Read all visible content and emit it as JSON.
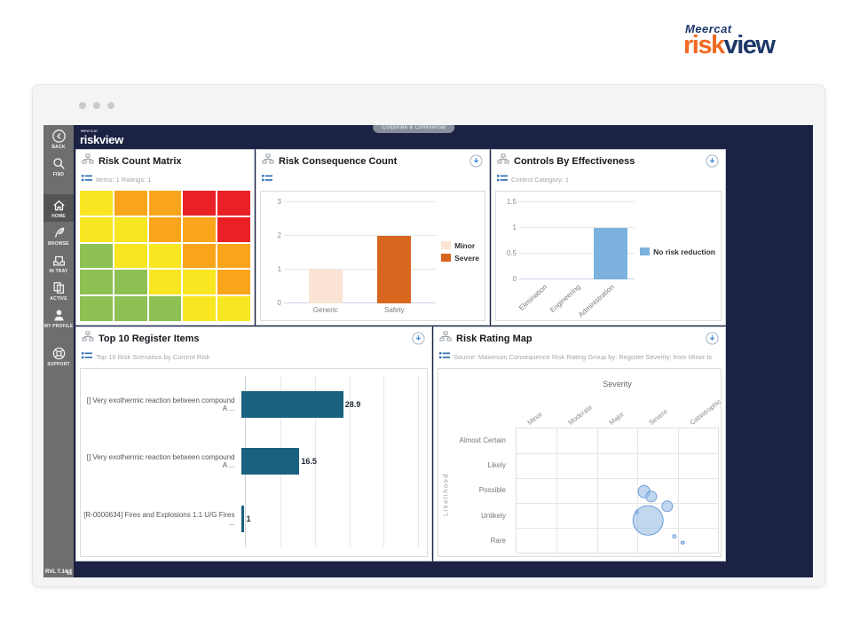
{
  "brand": {
    "company": "Meercat",
    "product_risk": "risk",
    "product_view": "view",
    "navy": "#1d3869",
    "orange": "#f26a21"
  },
  "window": {
    "org_badge": "Corporate & Commercial"
  },
  "app_logo": {
    "small": "Meercat",
    "main": "riskview"
  },
  "sidebar": {
    "items": [
      {
        "id": "back",
        "label": "BACK"
      },
      {
        "id": "find",
        "label": "FIND"
      },
      {
        "id": "home",
        "label": "HOME",
        "active": true
      },
      {
        "id": "browse",
        "label": "BROWSE"
      },
      {
        "id": "in-tray",
        "label": "IN TRAY"
      },
      {
        "id": "active",
        "label": "ACTIVE"
      },
      {
        "id": "my-profile",
        "label": "MY PROFILE"
      },
      {
        "id": "support",
        "label": "SUPPORT"
      }
    ],
    "version": "RVL 7.14.2"
  },
  "chart_data": [
    {
      "type": "heatmap",
      "title": "Risk Count Matrix",
      "subtitle": "Items: 1    Ratings: 1",
      "palette": {
        "G": "#8ec054",
        "Y": "#f7e621",
        "O": "#f9a51b",
        "R": "#e92025"
      },
      "rows": [
        [
          "Y",
          "O",
          "O",
          "R",
          "R"
        ],
        [
          "Y",
          "Y",
          "O",
          "O",
          "R"
        ],
        [
          "G",
          "Y",
          "Y",
          "O",
          "O"
        ],
        [
          "G",
          "G",
          "Y",
          "Y",
          "O"
        ],
        [
          "G",
          "G",
          "G",
          "Y",
          "Y"
        ]
      ]
    },
    {
      "type": "bar",
      "title": "Risk Consequence Count",
      "subtitle": "",
      "categories": [
        "Generic",
        "Safety"
      ],
      "values": [
        1,
        2
      ],
      "bar_colors": [
        "#fbe4d5",
        "#d9661f"
      ],
      "ylim": [
        0,
        3
      ],
      "yticks": [
        0,
        1,
        2,
        3
      ],
      "grid": true,
      "legend_position": "right",
      "legend": [
        {
          "label": "Minor",
          "color": "#fbe4d5"
        },
        {
          "label": "Severe",
          "color": "#d9661f"
        }
      ]
    },
    {
      "type": "bar",
      "title": "Controls By Effectiveness",
      "subtitle": "Control Category: 1",
      "categories": [
        "Elimination",
        "Engineering",
        "Administration"
      ],
      "values": [
        0,
        0,
        1
      ],
      "bar_colors": [
        "#7cb2dd",
        "#7cb2dd",
        "#7cb2dd"
      ],
      "ylim": [
        0,
        1.5
      ],
      "yticks": [
        0,
        0.5,
        1,
        1.5
      ],
      "grid": true,
      "rotated_xlabels": true,
      "legend_position": "right",
      "legend": [
        {
          "label": "No risk reduction",
          "color": "#7cb2dd"
        }
      ]
    },
    {
      "type": "horizontal-bar",
      "title": "Top 10 Register Items",
      "subtitle": "Top 10 Risk Scenarios by Current Risk",
      "categories": [
        "[] Very exothermic reaction between compound A ...",
        "[] Very exothermic reaction between compound A ...",
        "[R-0000634] Fires and Explosions 1.1 U/G Fires ..."
      ],
      "values": [
        28.9,
        16.5,
        1
      ],
      "value_labels": [
        "28.9",
        "16.5",
        "1"
      ],
      "xlim": [
        0,
        50
      ],
      "x_gridlines": [
        10,
        20,
        30,
        40,
        50
      ],
      "bar_color": "#1a607f"
    },
    {
      "type": "bubble",
      "title": "Risk Rating Map",
      "subtitle": "Source: Maximum Consequence Risk Rating    Group by: Register    Severity: from Minor to Catas...",
      "x_axis_title": "Severity",
      "y_axis_title": "Likelihood",
      "x_categories": [
        "Minor",
        "Moderate",
        "Major",
        "Severe",
        "Catastrophic"
      ],
      "y_categories": [
        "Almost Certain",
        "Likely",
        "Possible",
        "Unlikely",
        "Rare"
      ],
      "bubble_fill": "rgba(144,182,227,0.55)",
      "bubble_border": "#6f9fd8",
      "points": [
        {
          "severity": "Severe",
          "likelihood": "Possible",
          "x_pct": 63.3,
          "y_pct": 50.7,
          "r": 7.3
        },
        {
          "severity": "Severe",
          "likelihood": "Possible",
          "x_pct": 66.8,
          "y_pct": 54.9,
          "r": 6.7
        },
        {
          "severity": "Severe",
          "likelihood": "Possible",
          "x_pct": 74.8,
          "y_pct": 62.5,
          "r": 6.7
        },
        {
          "severity": "Severe",
          "likelihood": "Unlikely",
          "x_pct": 59.8,
          "y_pct": 67.1,
          "r": 2.3
        },
        {
          "severity": "Severe",
          "likelihood": "Unlikely",
          "x_pct": 65.4,
          "y_pct": 74.2,
          "r": 17.3
        },
        {
          "severity": "Catastrophic",
          "likelihood": "Rare",
          "x_pct": 78.4,
          "y_pct": 87.1,
          "r": 2.7
        },
        {
          "severity": "Catastrophic",
          "likelihood": "Rare",
          "x_pct": 82.5,
          "y_pct": 91.8,
          "r": 2.3
        }
      ]
    }
  ]
}
